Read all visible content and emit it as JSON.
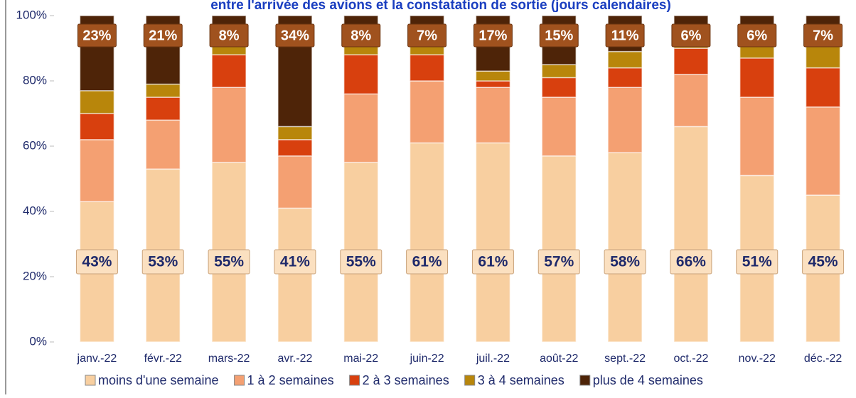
{
  "chart_data": {
    "type": "stacked_bar",
    "title": "entre l'arrivée des avions et la constatation de sortie (jours calendaires)",
    "categories": [
      "janv.-22",
      "févr.-22",
      "mars-22",
      "avr.-22",
      "mai-22",
      "juin-22",
      "juil.-22",
      "août-22",
      "sept.-22",
      "oct.-22",
      "nov.-22",
      "déc.-22"
    ],
    "series": [
      {
        "name": "moins d'une semaine",
        "color": "#f8cfa0",
        "values": [
          43,
          53,
          55,
          41,
          55,
          61,
          61,
          57,
          58,
          66,
          51,
          45
        ],
        "value_labels": [
          "43%",
          "53%",
          "55%",
          "41%",
          "55%",
          "61%",
          "61%",
          "57%",
          "58%",
          "66%",
          "51%",
          "45%"
        ]
      },
      {
        "name": "1 à 2 semaines",
        "color": "#f4a072",
        "values": [
          19,
          15,
          23,
          16,
          21,
          19,
          17,
          18,
          20,
          16,
          24,
          27
        ]
      },
      {
        "name": "2 à 3 semaines",
        "color": "#d8400e",
        "values": [
          8,
          7,
          10,
          5,
          12,
          8,
          2,
          6,
          6,
          8,
          12,
          12
        ]
      },
      {
        "name": "3 à 4 semaines",
        "color": "#b8860b",
        "values": [
          7,
          4,
          4,
          4,
          4,
          5,
          3,
          4,
          5,
          4,
          7,
          9
        ]
      },
      {
        "name": "plus de 4 semaines",
        "color": "#4e2408",
        "values": [
          23,
          21,
          8,
          34,
          8,
          7,
          17,
          15,
          11,
          6,
          6,
          7
        ],
        "value_labels": [
          "23%",
          "21%",
          "8%",
          "34%",
          "8%",
          "7%",
          "17%",
          "15%",
          "11%",
          "6%",
          "6%",
          "7%"
        ]
      }
    ],
    "ylim": [
      0,
      100
    ],
    "yticks": [
      {
        "value": 0,
        "label": "0%"
      },
      {
        "value": 20,
        "label": "20%"
      },
      {
        "value": 40,
        "label": "40%"
      },
      {
        "value": 60,
        "label": "60%"
      },
      {
        "value": 80,
        "label": "80%"
      },
      {
        "value": 100,
        "label": "100%"
      }
    ],
    "legend": "bottom"
  }
}
